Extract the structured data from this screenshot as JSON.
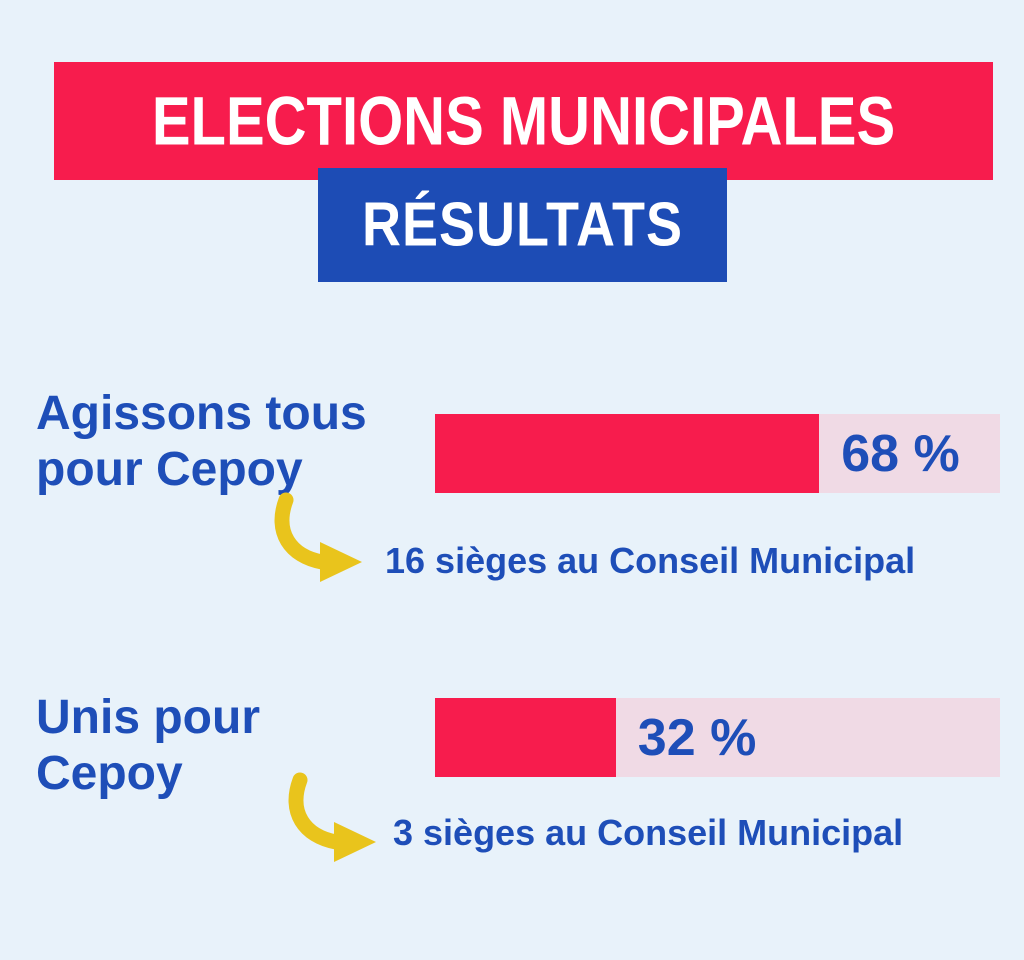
{
  "page": {
    "background": "#e8f2fa"
  },
  "header": {
    "title": "ELECTIONS MUNICIPALES",
    "subtitle": "RÉSULTATS"
  },
  "colors": {
    "banner_red": "#f71c4d",
    "banner_blue": "#1d4cb5",
    "text_blue": "#1e4eb8",
    "bar_fill_red": "#f71c4d",
    "bar_track_pink": "#f0dae5",
    "arrow_yellow": "#e9c41c",
    "header_text_white": "#ffffff",
    "background_light_blue": "#e8f2fa"
  },
  "chart_data": {
    "type": "bar",
    "orientation": "horizontal",
    "title": "ELECTIONS MUNICIPALES",
    "subtitle": "RÉSULTATS",
    "categories": [
      "Agissons tous pour Cepoy",
      "Unis pour Cepoy"
    ],
    "values": [
      68,
      32
    ],
    "value_labels": [
      "68 %",
      "32 %"
    ],
    "annotations": [
      "16 sièges au Conseil Municipal",
      "3 sièges au Conseil Municipal"
    ],
    "xlim": [
      0,
      100
    ],
    "unit": "%",
    "grid": false,
    "legend": false
  },
  "rows": [
    {
      "label_line1": "Agissons tous",
      "label_line2": "pour Cepoy",
      "value": 68,
      "value_label": "68 %",
      "seats": "16 sièges au Conseil Municipal"
    },
    {
      "label_line1": "Unis pour",
      "label_line2": "Cepoy",
      "value": 32,
      "value_label": "32 %",
      "seats": "3 sièges au Conseil Municipal"
    }
  ]
}
